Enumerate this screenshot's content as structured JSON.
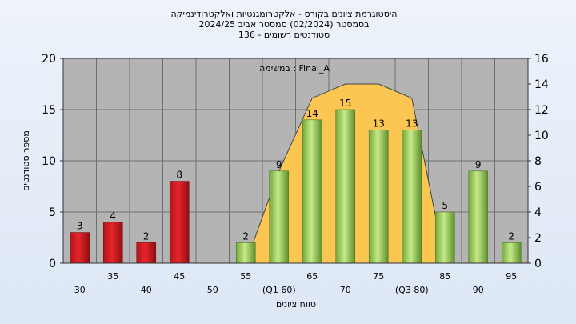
{
  "chart_data": {
    "type": "bar",
    "title_lines": [
      "היסטוגרמת ציונים בקורס - אלקטרומגנטיות ואלקטרודינמיקה",
      "בסמסטר  (02/2024)  סמסטר אביב 2024/25",
      "סטודנטים רשומים - 136"
    ],
    "annotation": "במשימה : Final_A",
    "xlabel": "טווח ציונים",
    "ylabel": "מספר סטודנטים",
    "ylim": [
      0,
      20
    ],
    "yticks": [
      0,
      5,
      10,
      15,
      20
    ],
    "y2lim": [
      0,
      16
    ],
    "y2ticks": [
      0,
      2,
      4,
      6,
      8,
      10,
      12,
      14,
      16
    ],
    "grid": true,
    "categories": [
      "30",
      "35",
      "40",
      "45",
      "50",
      "55",
      "(Q1 60)",
      "65",
      "70",
      "75",
      "(Q3 80)",
      "85",
      "90",
      "95"
    ],
    "values": [
      3,
      4,
      2,
      8,
      0,
      2,
      9,
      14,
      15,
      13,
      13,
      5,
      9,
      2
    ],
    "bar_colors": [
      "red",
      "red",
      "red",
      "red",
      "none",
      "green",
      "green",
      "green",
      "green",
      "green",
      "green",
      "green",
      "green",
      "green"
    ],
    "area_series": {
      "x": [
        "55",
        "(Q1 60)",
        "65",
        "70",
        "75",
        "(Q3 80)",
        "85"
      ],
      "values": [
        0,
        7.2,
        12.9,
        14,
        14,
        12.9,
        0
      ]
    },
    "colors": {
      "plot_bg": "#b4b4b4",
      "grid": "#6e6e6e",
      "red": "#e8242b",
      "green": "#9ed154",
      "area": "#fcc653"
    }
  }
}
